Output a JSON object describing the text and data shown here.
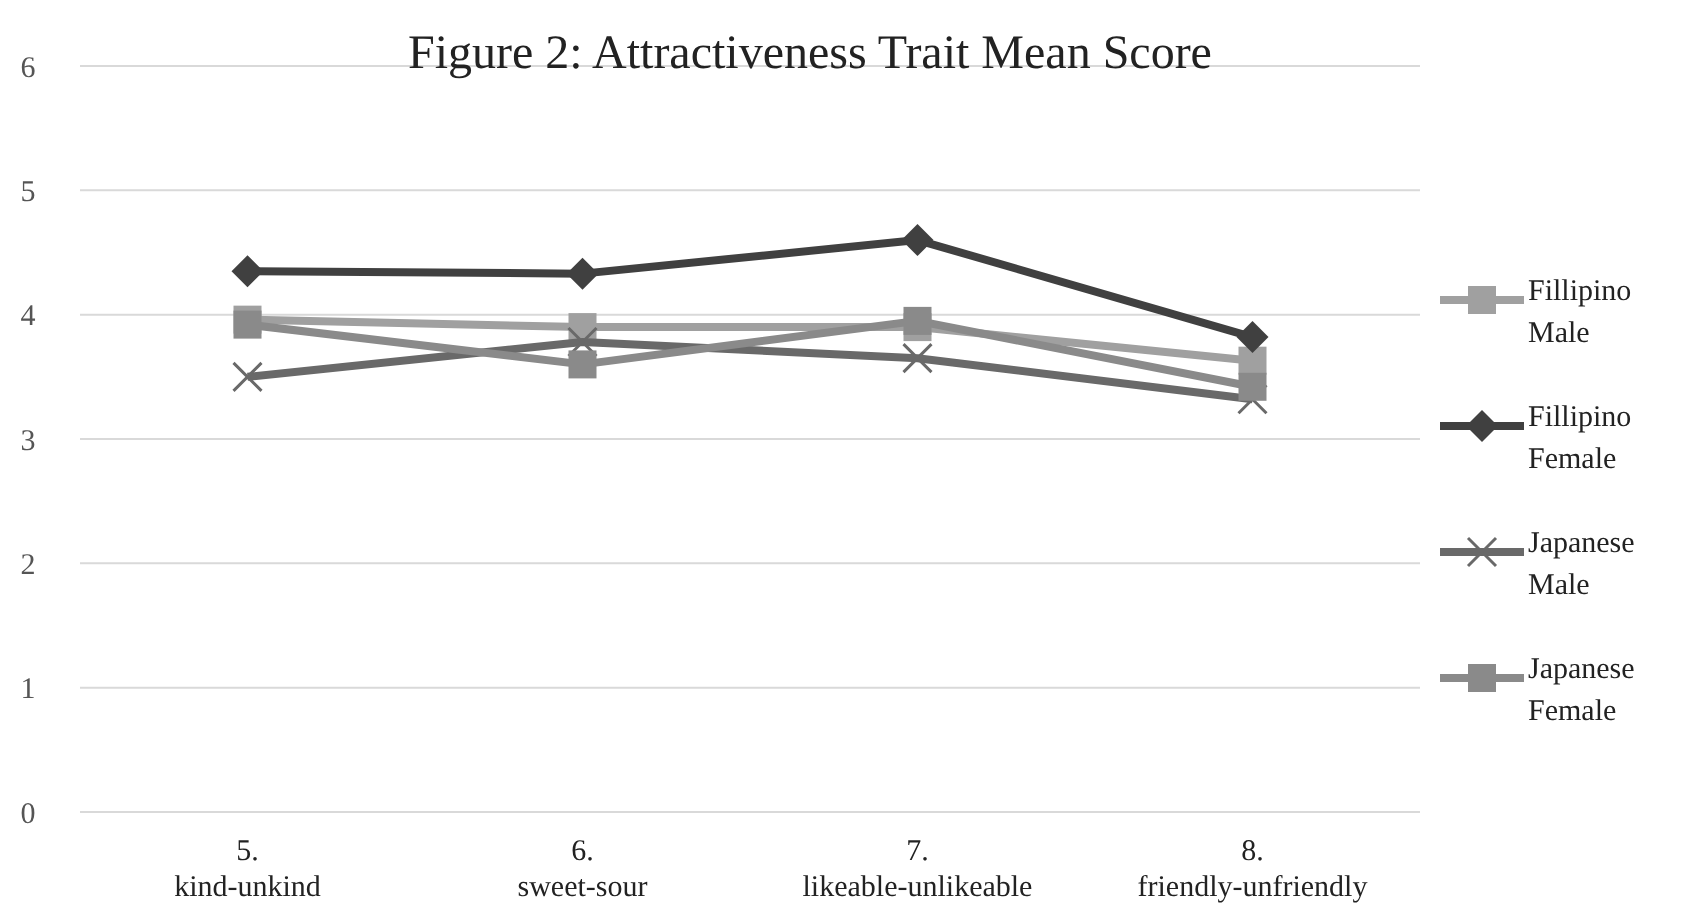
{
  "chart_data": {
    "type": "line",
    "title": "Figure 2: Attractiveness Trait Mean Score",
    "categories": [
      "5. kind-unkind",
      "6. sweet-sour",
      "7. likeable-unlikeable",
      "8. friendly-unfriendly"
    ],
    "series": [
      {
        "name": "Fillipino Male",
        "color": "#a0a0a0",
        "marker": "square",
        "values": [
          3.96,
          3.9,
          3.9,
          3.63
        ]
      },
      {
        "name": "Fillipino Female",
        "color": "#404040",
        "marker": "diamond",
        "values": [
          4.35,
          4.33,
          4.6,
          3.82
        ]
      },
      {
        "name": "Japanese Male",
        "color": "#696969",
        "marker": "cross",
        "values": [
          3.5,
          3.78,
          3.65,
          3.32
        ]
      },
      {
        "name": "Japanese Female",
        "color": "#8a8a8a",
        "marker": "square",
        "values": [
          3.92,
          3.6,
          3.95,
          3.42
        ]
      }
    ],
    "ylim": [
      0,
      6
    ],
    "yticks": [
      0,
      1,
      2,
      3,
      4,
      5,
      6
    ],
    "grid": "y",
    "legend": "right"
  }
}
